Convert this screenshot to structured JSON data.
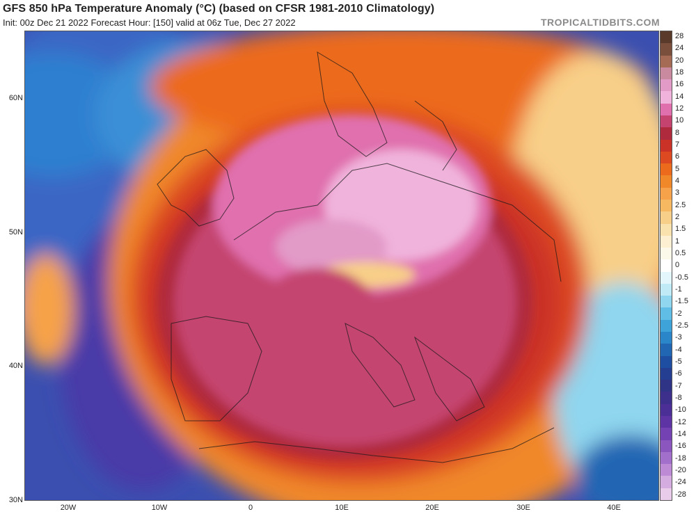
{
  "header": {
    "title": "GFS 850 hPa Temperature Anomaly (°C) (based on CFSR 1981-2010 Climatology)",
    "subtitle": "Init: 00z Dec 21 2022   Forecast Hour: [150]   valid at 06z Tue, Dec 27 2022",
    "brand": "TROPICALTIDBITS.COM"
  },
  "map": {
    "lat_labels": [
      "60N",
      "50N",
      "40N",
      "30N"
    ],
    "lon_labels": [
      "20W",
      "10W",
      "0",
      "10E",
      "20E",
      "30E",
      "40E"
    ],
    "legend": {
      "labels": [
        "28",
        "24",
        "20",
        "18",
        "16",
        "14",
        "12",
        "10",
        "8",
        "7",
        "6",
        "5",
        "4",
        "3",
        "2.5",
        "2",
        "1.5",
        "1",
        "0.5",
        "0",
        "-0.5",
        "-1",
        "-1.5",
        "-2",
        "-2.5",
        "-3",
        "-4",
        "-5",
        "-6",
        "-7",
        "-8",
        "-10",
        "-12",
        "-14",
        "-16",
        "-18",
        "-20",
        "-24",
        "-28"
      ],
      "colors": [
        "#5a3a2a",
        "#7a4f3c",
        "#a56b54",
        "#c98aa0",
        "#e29ac7",
        "#f0b3dc",
        "#e06fae",
        "#c4446f",
        "#b02a3e",
        "#cb3227",
        "#dd4a22",
        "#ec6a1c",
        "#f0882a",
        "#f6a24a",
        "#f7b862",
        "#f8cf88",
        "#fae2ae",
        "#fdf0d2",
        "#fcf8ea",
        "#ffffff",
        "#e3f6fb",
        "#bfeaf6",
        "#8fd6ee",
        "#5fbde6",
        "#3da3d9",
        "#2a86c8",
        "#2166b3",
        "#1d4ea1",
        "#243f92",
        "#2f3487",
        "#3d2f8c",
        "#4b2f96",
        "#5e34a4",
        "#7442b2",
        "#8b57bf",
        "#a26fca",
        "#bd8ad6",
        "#d5acdf",
        "#e9ccea"
      ]
    }
  }
}
